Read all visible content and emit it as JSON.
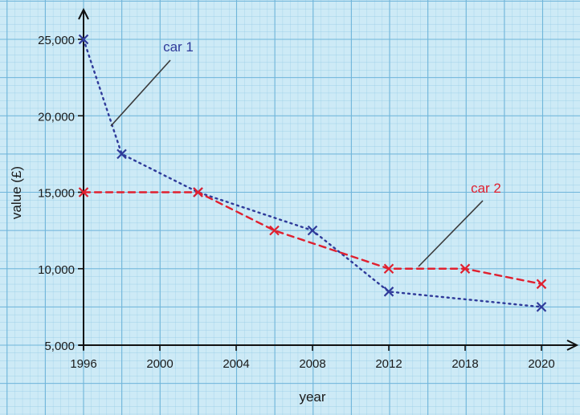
{
  "chart_data": {
    "type": "line",
    "xlabel": "year",
    "ylabel": "value (£)",
    "categories": [
      "1996",
      "2000",
      "2004",
      "2008",
      "2012",
      "2018",
      "2020"
    ],
    "ylim": [
      5000,
      25000
    ],
    "y_ticks": [
      {
        "value": 5000,
        "label": "5,000"
      },
      {
        "value": 10000,
        "label": "10,000"
      },
      {
        "value": 15000,
        "label": "15,000"
      },
      {
        "value": 20000,
        "label": "20,000"
      },
      {
        "value": 25000,
        "label": "25,000"
      }
    ],
    "grid": true,
    "series": [
      {
        "name": "car 1",
        "color": "#2f3a9a",
        "line_style": "dotted",
        "points": [
          {
            "x": "1996",
            "y": 25000
          },
          {
            "x": "1998",
            "y": 17500
          },
          {
            "x": "2002",
            "y": 15000
          },
          {
            "x": "2008",
            "y": 12500
          },
          {
            "x": "2012",
            "y": 8500
          },
          {
            "x": "2020",
            "y": 7500
          }
        ]
      },
      {
        "name": "car 2",
        "color": "#e0202f",
        "line_style": "dashed",
        "points": [
          {
            "x": "1996",
            "y": 15000
          },
          {
            "x": "2002",
            "y": 15000
          },
          {
            "x": "2006",
            "y": 12500
          },
          {
            "x": "2012",
            "y": 10000
          },
          {
            "x": "2018",
            "y": 10000
          },
          {
            "x": "2020",
            "y": 9000
          }
        ]
      }
    ]
  }
}
